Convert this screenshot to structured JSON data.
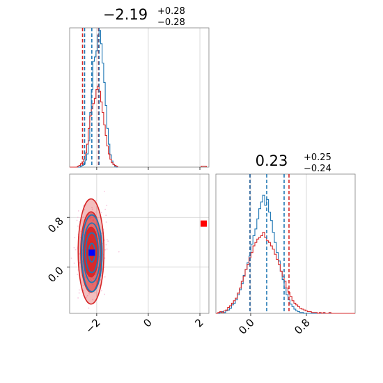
{
  "chart_data": {
    "type": "corner",
    "colors": {
      "blue": "#1f77b4",
      "red": "#d62728",
      "blue_marker": "#0000ff",
      "red_marker": "#ff0000",
      "scatter": "#f5b8d6"
    },
    "panels": [
      {
        "id": "marginal-param-1",
        "type": "histogram",
        "title": {
          "value": "−2.19",
          "upper": "+0.28",
          "lower": "−0.28"
        },
        "xlim": [
          -3.05,
          2.35
        ],
        "quantile_lines": {
          "blue": [
            -2.47,
            -2.19,
            -1.91
          ],
          "red": [
            -2.55,
            -1.93
          ]
        },
        "series": [
          {
            "name": "",
            "color": "blue",
            "bin_start": -3.05,
            "bin_width": 0.06,
            "counts": [
              0,
              0,
              0,
              0,
              0,
              0,
              0,
              1,
              2,
              4,
              8,
              15,
              30,
              62,
              88,
              120,
              125,
              132,
              150,
              155,
              140,
              118,
              96,
              70,
              44,
              26,
              14,
              7,
              3,
              1,
              0
            ]
          },
          {
            "name": "",
            "color": "red",
            "bin_start": -3.05,
            "bin_width": 0.06,
            "counts": [
              0,
              0,
              0,
              0,
              0,
              1,
              2,
              4,
              6,
              9,
              16,
              26,
              44,
              58,
              66,
              72,
              78,
              88,
              92,
              86,
              74,
              62,
              48,
              36,
              24,
              15,
              9,
              5,
              3,
              2,
              1
            ]
          }
        ],
        "extra_red_bins": [
          {
            "x": 2.05,
            "x2": 2.25,
            "count": 1
          }
        ],
        "ymax": 158
      },
      {
        "id": "marginal-param-2",
        "type": "histogram",
        "title": {
          "value": "0.23",
          "upper": "+0.25",
          "lower": "−0.24"
        },
        "xlim": [
          -0.5,
          1.5
        ],
        "quantile_lines": {
          "blue": [
            -0.01,
            0.23,
            0.48
          ],
          "red": [
            -0.01,
            0.55
          ]
        },
        "series": [
          {
            "name": "",
            "color": "blue",
            "bin_start": -0.5,
            "bin_width": 0.028,
            "counts": [
              0,
              0,
              1,
              2,
              1,
              3,
              4,
              6,
              10,
              12,
              16,
              22,
              28,
              35,
              45,
              52,
              60,
              68,
              82,
              92,
              100,
              112,
              124,
              132,
              140,
              128,
              135,
              120,
              110,
              96,
              84,
              72,
              62,
              50,
              40,
              30,
              22,
              16,
              11,
              8,
              5,
              3,
              2,
              1,
              1,
              0,
              0,
              0,
              0,
              0,
              0,
              0,
              0,
              0,
              0,
              0,
              0,
              0,
              0,
              0,
              0,
              0,
              0,
              0,
              0,
              0,
              0,
              0,
              0,
              0,
              0,
              0
            ]
          },
          {
            "name": "",
            "color": "red",
            "bin_start": -0.5,
            "bin_width": 0.028,
            "counts": [
              0,
              1,
              2,
              1,
              3,
              4,
              7,
              9,
              12,
              15,
              18,
              24,
              30,
              38,
              44,
              52,
              58,
              66,
              72,
              80,
              84,
              88,
              90,
              92,
              96,
              90,
              86,
              84,
              80,
              76,
              70,
              64,
              58,
              50,
              44,
              38,
              30,
              25,
              20,
              15,
              12,
              10,
              8,
              6,
              5,
              4,
              3,
              2,
              2,
              1,
              1,
              1,
              0,
              1,
              0,
              1,
              0,
              0,
              1,
              0,
              0,
              0,
              0,
              0,
              0,
              0,
              0,
              0,
              0,
              0,
              0,
              0
            ]
          }
        ],
        "ymax": 165
      }
    ],
    "joint": {
      "xlim": [
        -3.05,
        2.35
      ],
      "ylim": [
        -0.75,
        1.5
      ],
      "blue_contours": [
        {
          "cx": -2.19,
          "cy": 0.23,
          "rx": 0.12,
          "ry": 0.15
        },
        {
          "cx": -2.19,
          "cy": 0.23,
          "rx": 0.24,
          "ry": 0.32
        },
        {
          "cx": -2.19,
          "cy": 0.23,
          "rx": 0.33,
          "ry": 0.48
        },
        {
          "cx": -2.19,
          "cy": 0.22,
          "rx": 0.4,
          "ry": 0.62
        }
      ],
      "red_contours": [
        {
          "cx": -2.22,
          "cy": 0.24,
          "rx": 0.14,
          "ry": 0.17,
          "fill": 1.0
        },
        {
          "cx": -2.22,
          "cy": 0.24,
          "rx": 0.28,
          "ry": 0.4,
          "fill": 0.95
        },
        {
          "cx": -2.22,
          "cy": 0.24,
          "rx": 0.4,
          "ry": 0.65,
          "fill": 0.55
        },
        {
          "cx": -2.22,
          "cy": 0.25,
          "rx": 0.5,
          "ry": 0.85,
          "fill": 0.3
        }
      ],
      "markers": [
        {
          "color": "blue_marker",
          "x": -2.19,
          "y": 0.23
        },
        {
          "color": "red_marker",
          "x": 2.15,
          "y": 0.7
        }
      ]
    },
    "axes": {
      "x1_ticks": [
        {
          "v": -2,
          "label": "−2"
        },
        {
          "v": 0,
          "label": "0"
        },
        {
          "v": 2,
          "label": "2"
        }
      ],
      "x2_ticks": [
        {
          "v": 0.0,
          "label": "0.0"
        },
        {
          "v": 0.8,
          "label": "0.8"
        }
      ],
      "y2_ticks": [
        {
          "v": 0.0,
          "label": "0.0"
        },
        {
          "v": 0.8,
          "label": "0.8"
        }
      ]
    }
  }
}
